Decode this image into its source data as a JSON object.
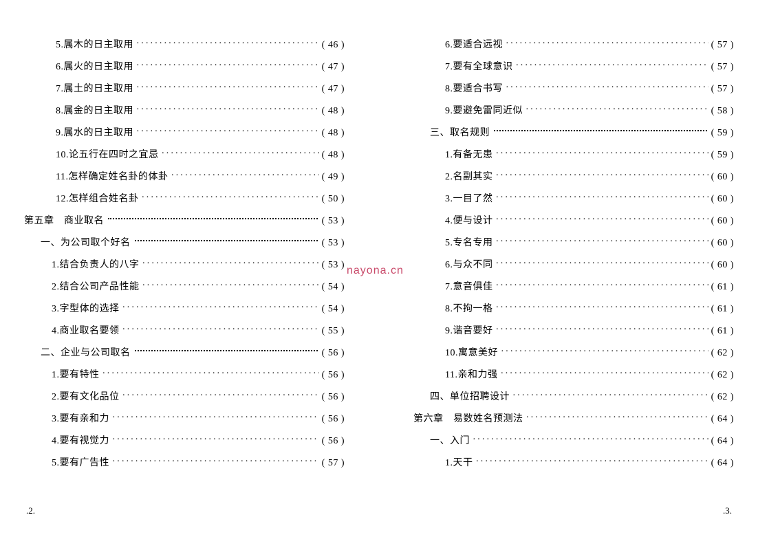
{
  "watermark": "nayona.cn",
  "leftPage": {
    "pageNumber": ".2.",
    "entries": [
      {
        "label": "5.属木的日主取用",
        "page": "( 46 )",
        "indent": 4,
        "leaderStyle": "dots"
      },
      {
        "label": "6.属火的日主取用",
        "page": "( 47 )",
        "indent": 4,
        "leaderStyle": "dots"
      },
      {
        "label": "7.属土的日主取用",
        "page": "( 47 )",
        "indent": 4,
        "leaderStyle": "dots"
      },
      {
        "label": "8.属金的日主取用",
        "page": "( 48 )",
        "indent": 4,
        "leaderStyle": "dots"
      },
      {
        "label": "9.属水的日主取用",
        "page": "( 48 )",
        "indent": 4,
        "leaderStyle": "dots"
      },
      {
        "label": "10.论五行在四时之宜忌",
        "page": "( 48 )",
        "indent": 4,
        "leaderStyle": "dots"
      },
      {
        "label": "11.怎样确定姓名卦的体卦",
        "page": "( 49 )",
        "indent": 4,
        "leaderStyle": "dots"
      },
      {
        "label": "12.怎样组合姓名卦",
        "page": "( 50 )",
        "indent": 4,
        "leaderStyle": "dots"
      },
      {
        "label": "第五章　商业取名",
        "page": "( 53 )",
        "indent": 1,
        "leaderStyle": "solid"
      },
      {
        "label": "一、为公司取个好名",
        "page": "( 53 )",
        "indent": 2,
        "leaderStyle": "solid"
      },
      {
        "label": "1.结合负责人的八字",
        "page": "( 53 )",
        "indent": 3,
        "leaderStyle": "dots"
      },
      {
        "label": "2.结合公司产品性能",
        "page": "( 54 )",
        "indent": 3,
        "leaderStyle": "dots"
      },
      {
        "label": "3.字型体的选择",
        "page": "( 54 )",
        "indent": 3,
        "leaderStyle": "dots"
      },
      {
        "label": "4.商业取名要领",
        "page": "( 55 )",
        "indent": 3,
        "leaderStyle": "dots"
      },
      {
        "label": "二、企业与公司取名",
        "page": "( 56 )",
        "indent": 2,
        "leaderStyle": "solid"
      },
      {
        "label": "1.要有特性",
        "page": "( 56 )",
        "indent": 3,
        "leaderStyle": "dots"
      },
      {
        "label": "2.要有文化品位",
        "page": "( 56 )",
        "indent": 3,
        "leaderStyle": "dots"
      },
      {
        "label": "3.要有亲和力",
        "page": "( 56 )",
        "indent": 3,
        "leaderStyle": "dots"
      },
      {
        "label": "4.要有视觉力",
        "page": "( 56 )",
        "indent": 3,
        "leaderStyle": "dots"
      },
      {
        "label": "5.要有广告性",
        "page": "( 57 )",
        "indent": 3,
        "leaderStyle": "dots"
      }
    ]
  },
  "rightPage": {
    "pageNumber": ".3.",
    "entries": [
      {
        "label": "6.要适合远视",
        "page": "( 57 )",
        "indent": 4,
        "leaderStyle": "dots"
      },
      {
        "label": "7.要有全球意识",
        "page": "( 57 )",
        "indent": 4,
        "leaderStyle": "dots"
      },
      {
        "label": "8.要适合书写",
        "page": "( 57 )",
        "indent": 4,
        "leaderStyle": "dots"
      },
      {
        "label": "9.要避免雷同近似",
        "page": "( 58 )",
        "indent": 4,
        "leaderStyle": "dots"
      },
      {
        "label": "三、取名规则",
        "page": "( 59 )",
        "indent": 2,
        "leaderStyle": "solid"
      },
      {
        "label": "1.有备无患",
        "page": "( 59 )",
        "indent": 4,
        "leaderStyle": "dots"
      },
      {
        "label": "2.名副其实",
        "page": "( 60 )",
        "indent": 4,
        "leaderStyle": "dots"
      },
      {
        "label": "3.一目了然",
        "page": "( 60 )",
        "indent": 4,
        "leaderStyle": "dots"
      },
      {
        "label": "4.便与设计",
        "page": "( 60 )",
        "indent": 4,
        "leaderStyle": "dots"
      },
      {
        "label": "5.专名专用",
        "page": "( 60 )",
        "indent": 4,
        "leaderStyle": "dots"
      },
      {
        "label": "6.与众不同",
        "page": "( 60 )",
        "indent": 4,
        "leaderStyle": "dots"
      },
      {
        "label": "7.意音俱佳",
        "page": "( 61 )",
        "indent": 4,
        "leaderStyle": "dots"
      },
      {
        "label": "8.不拘一格",
        "page": "( 61 )",
        "indent": 4,
        "leaderStyle": "dots"
      },
      {
        "label": "9.谐音要好",
        "page": "( 61 )",
        "indent": 4,
        "leaderStyle": "dots"
      },
      {
        "label": "10.寓意美好",
        "page": "( 62 )",
        "indent": 4,
        "leaderStyle": "dots"
      },
      {
        "label": "11.亲和力强",
        "page": "( 62 )",
        "indent": 4,
        "leaderStyle": "dots"
      },
      {
        "label": "四、单位招聘设计",
        "page": "( 62 )",
        "indent": 2,
        "leaderStyle": "dots"
      },
      {
        "label": "第六章　易数姓名预测法",
        "page": "( 64 )",
        "indent": 1,
        "leaderStyle": "dots"
      },
      {
        "label": "一、入门",
        "page": "( 64 )",
        "indent": 2,
        "leaderStyle": "dots"
      },
      {
        "label": "1.天干",
        "page": "( 64 )",
        "indent": 4,
        "leaderStyle": "dots"
      }
    ]
  }
}
